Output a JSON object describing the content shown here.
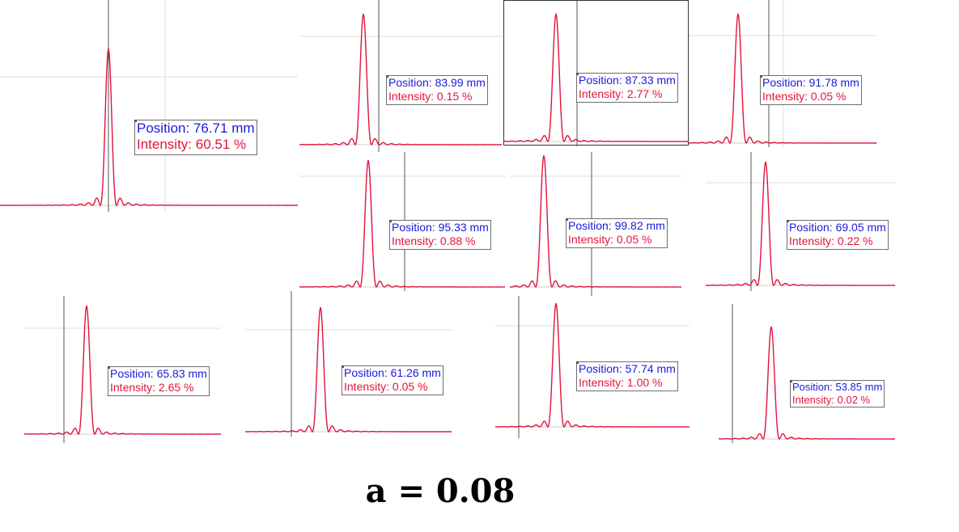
{
  "caption": "a = 0.08",
  "colors": {
    "curve": "#e0143c",
    "position_text": "#1a1adc",
    "intensity_text": "#e0143c",
    "grid": "#dddddd",
    "cursor": "#555555"
  },
  "chart_data": [
    {
      "type": "line",
      "readout": {
        "position": "Position: 76.71 mm",
        "intensity": "Intensity: 60.51 %"
      }
    },
    {
      "type": "line",
      "readout": {
        "position": "Position: 83.99 mm",
        "intensity": "Intensity: 0.15 %"
      }
    },
    {
      "type": "line",
      "readout": {
        "position": "Position: 87.33 mm",
        "intensity": "Intensity: 2.77 %"
      }
    },
    {
      "type": "line",
      "readout": {
        "position": "Position: 91.78 mm",
        "intensity": "Intensity: 0.05 %"
      }
    },
    {
      "type": "line",
      "readout": {
        "position": "Position: 95.33 mm",
        "intensity": "Intensity: 0.88 %"
      }
    },
    {
      "type": "line",
      "readout": {
        "position": "Position: 99.82 mm",
        "intensity": "Intensity: 0.05 %"
      }
    },
    {
      "type": "line",
      "readout": {
        "position": "Position: 69.05 mm",
        "intensity": "Intensity: 0.22 %"
      }
    },
    {
      "type": "line",
      "readout": {
        "position": "Position: 65.83 mm",
        "intensity": "Intensity: 2.65 %"
      }
    },
    {
      "type": "line",
      "readout": {
        "position": "Position: 61.26 mm",
        "intensity": "Intensity: 0.05 %"
      }
    },
    {
      "type": "line",
      "readout": {
        "position": "Position: 57.74 mm",
        "intensity": "Intensity: 1.00 %"
      }
    },
    {
      "type": "line",
      "readout": {
        "position": "Position: 53.85 mm",
        "intensity": "Intensity: 0.02 %"
      }
    }
  ]
}
